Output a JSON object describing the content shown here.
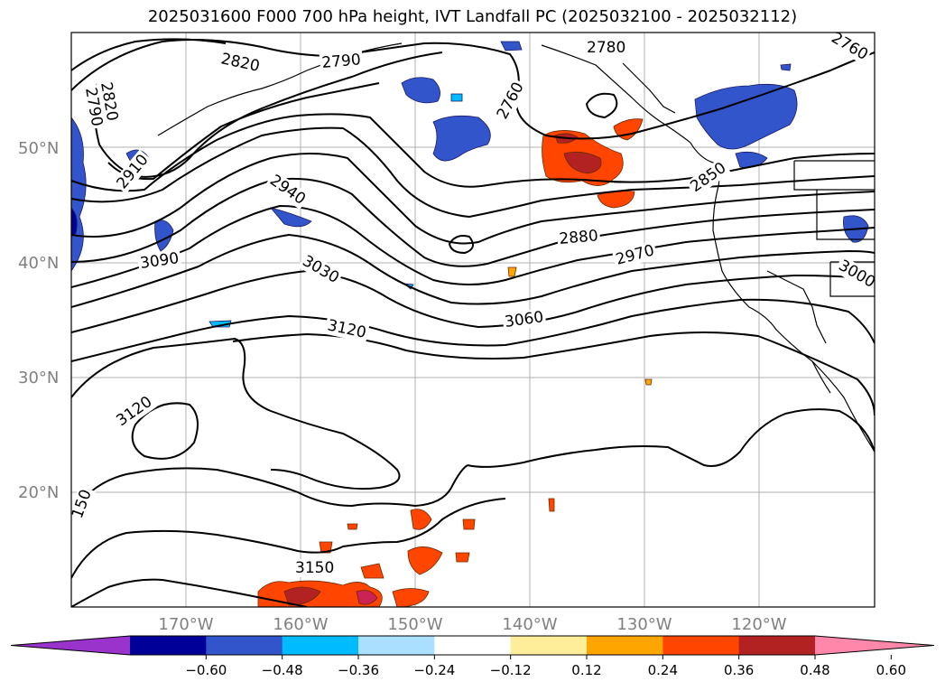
{
  "title": "2025031600 F000 700 hPa height, IVT Landfall PC (2025032100 - 2025032112)",
  "lat_labels": [
    "50°N",
    "40°N",
    "30°N",
    "20°N"
  ],
  "lon_labels": [
    "170°W",
    "160°W",
    "150°W",
    "140°W",
    "130°W",
    "120°W"
  ],
  "contour_labels": [
    "2820",
    "2790",
    "2760",
    "2820",
    "2790",
    "2910",
    "2940",
    "3090",
    "3030",
    "3120",
    "3060",
    "2880",
    "2970",
    "2850",
    "3000",
    "3120",
    "3150",
    "150",
    "2760",
    "2780"
  ],
  "colorbar": {
    "ticks": [
      "−0.60",
      "−0.48",
      "−0.36",
      "−0.24",
      "−0.12",
      "0.12",
      "0.24",
      "0.36",
      "0.48",
      "0.60"
    ],
    "colors": [
      "#9933cc",
      "#000099",
      "#3355cc",
      "#00bbff",
      "#aadfff",
      "#ffffff",
      "#ffee99",
      "#ffa500",
      "#ff4500",
      "#b22222",
      "#ff88aa"
    ]
  }
}
